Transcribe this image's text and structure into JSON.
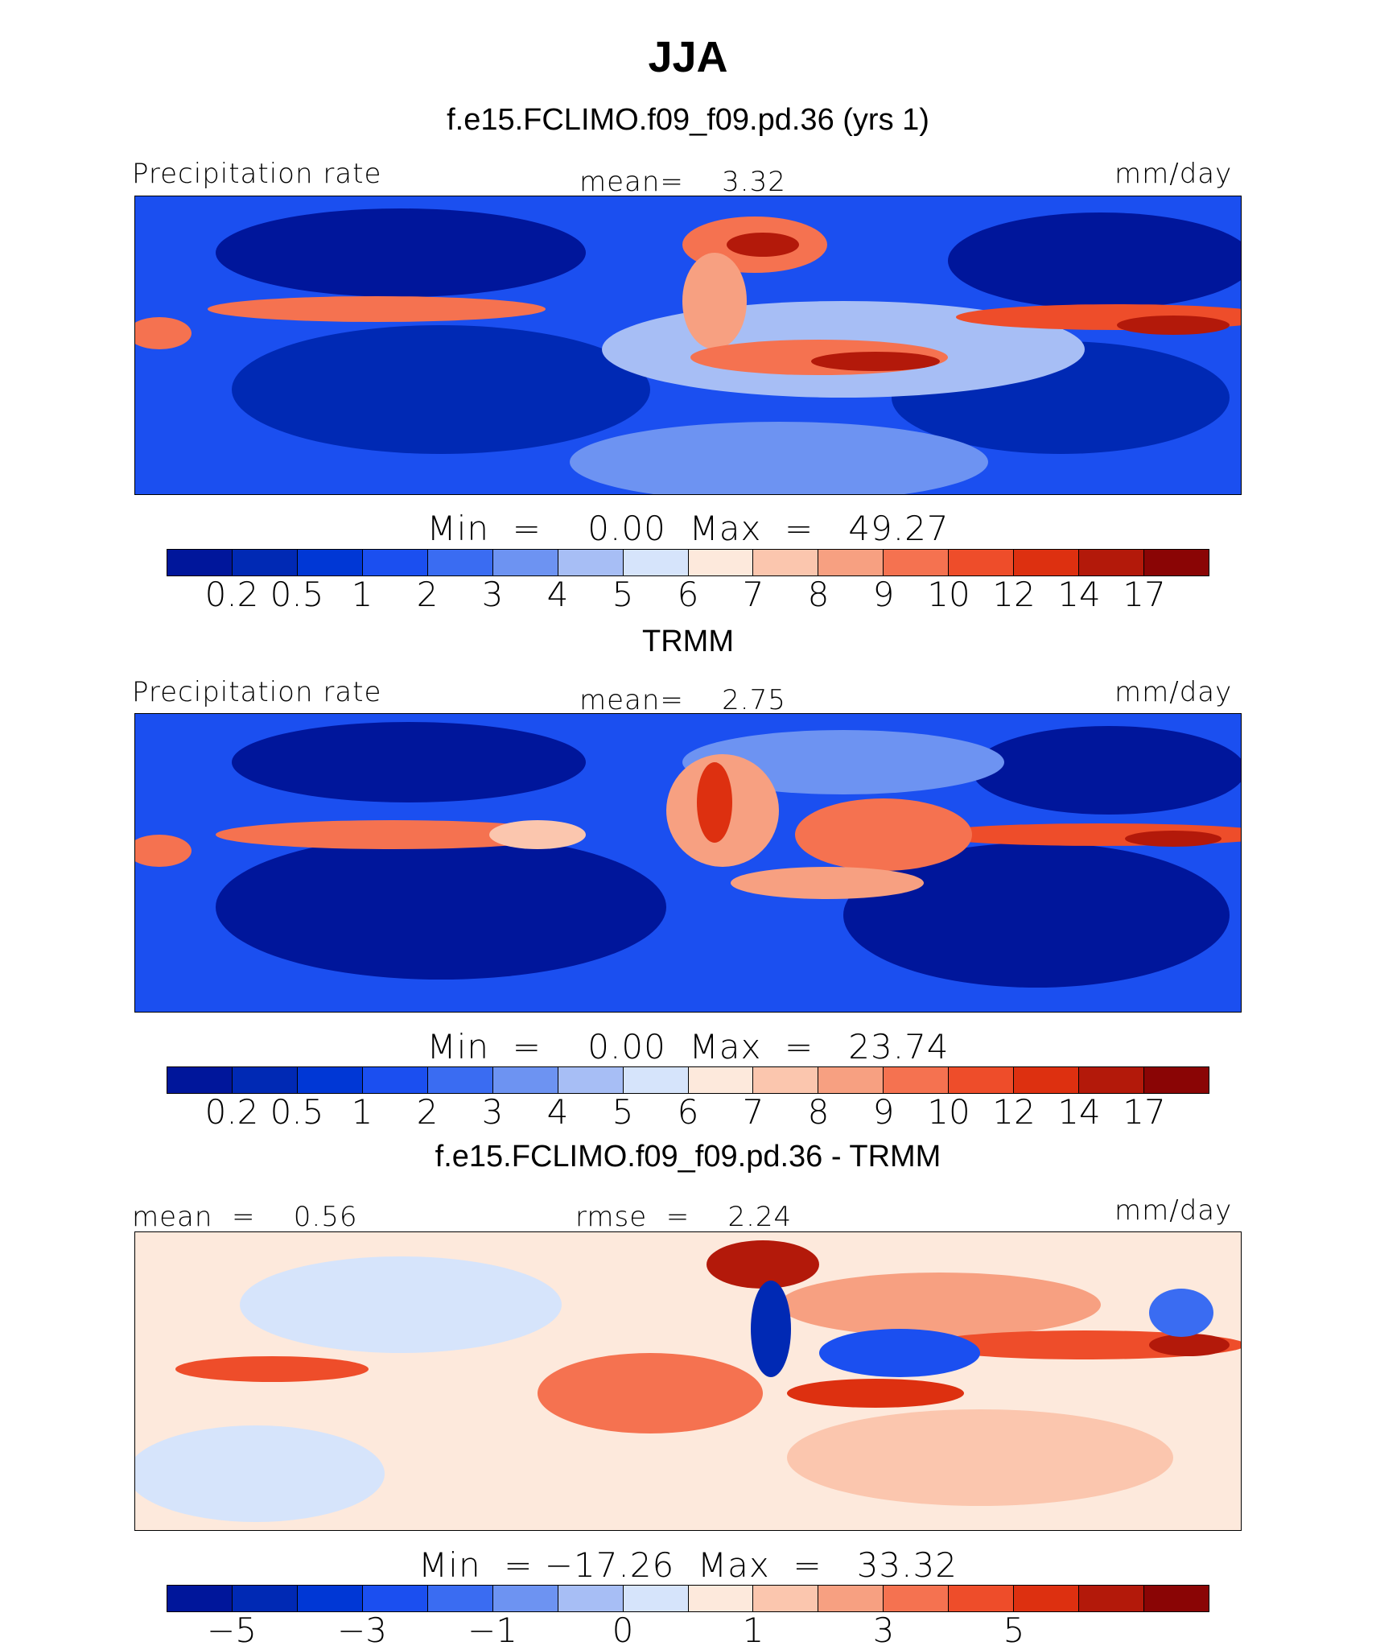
{
  "title": "JJA",
  "colors": {
    "precip_scale": [
      "#00169b",
      "#0029b4",
      "#0037d5",
      "#1b4ff0",
      "#3a6cf2",
      "#6d93f2",
      "#a7bef5",
      "#d6e4fb",
      "#fde9dc",
      "#fbc6ae",
      "#f7a081",
      "#f57250",
      "#ee4d2a",
      "#dd3010",
      "#b3190a",
      "#8a0505"
    ],
    "diff_scale": [
      "#00169b",
      "#0029b4",
      "#0037d5",
      "#1b4ff0",
      "#3a6cf2",
      "#6d93f2",
      "#a7bef5",
      "#d6e4fb",
      "#fde9dc",
      "#fbc6ae",
      "#f7a081",
      "#f57250",
      "#ee4d2a",
      "#dd3010",
      "#b3190a",
      "#8a0505"
    ]
  },
  "panels": [
    {
      "subtitle": "f.e15.FCLIMO.f09_f09.pd.36 (yrs 1)",
      "left_label": "Precipitation rate",
      "center_label": "mean=    3.32",
      "right_label": "mm/day",
      "minmax": "Min  =    0.00  Max  =   49.27",
      "ticks": [
        "0.2",
        "0.5",
        "1",
        "2",
        "3",
        "4",
        "5",
        "6",
        "7",
        "8",
        "9",
        "10",
        "12",
        "14",
        "17"
      ]
    },
    {
      "subtitle": "TRMM",
      "left_label": "Precipitation rate",
      "center_label": "mean=    2.75",
      "right_label": "mm/day",
      "minmax": "Min  =    0.00  Max  =   23.74",
      "ticks": [
        "0.2",
        "0.5",
        "1",
        "2",
        "3",
        "4",
        "5",
        "6",
        "7",
        "8",
        "9",
        "10",
        "12",
        "14",
        "17"
      ]
    },
    {
      "subtitle": "f.e15.FCLIMO.f09_f09.pd.36 - TRMM",
      "left_label": "mean  =    0.56",
      "center_label": "rmse  =    2.24",
      "right_label": "mm/day",
      "minmax": "Min  = −17.26  Max  =   33.32",
      "ticks": [
        "−5",
        "−3",
        "−1",
        "0",
        "1",
        "3",
        "5"
      ]
    }
  ]
}
